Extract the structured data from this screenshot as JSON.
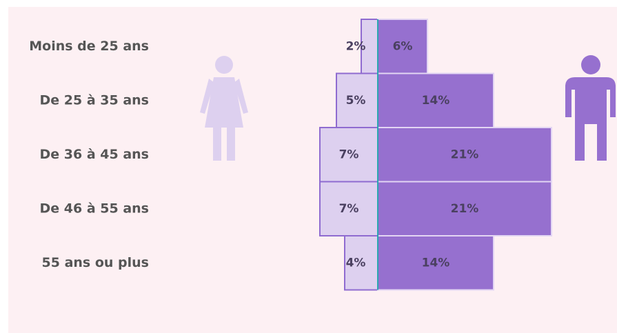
{
  "chart_data": {
    "type": "pyramid",
    "categories": [
      "Moins de 25 ans",
      "De 25 à 35 ans",
      "De 36 à 45 ans",
      "De 46 à 55 ans",
      "55 ans ou plus"
    ],
    "series": [
      {
        "color": "#ddd0ef",
        "values": [
          2,
          5,
          7,
          7,
          4
        ],
        "value_labels": [
          "2%",
          "5%",
          "7%",
          "7%",
          "4%"
        ]
      },
      {
        "color": "#9670cf",
        "values": [
          6,
          14,
          21,
          21,
          14
        ],
        "value_labels": [
          "6%",
          "14%",
          "21%",
          "21%",
          "14%"
        ]
      }
    ]
  }
}
